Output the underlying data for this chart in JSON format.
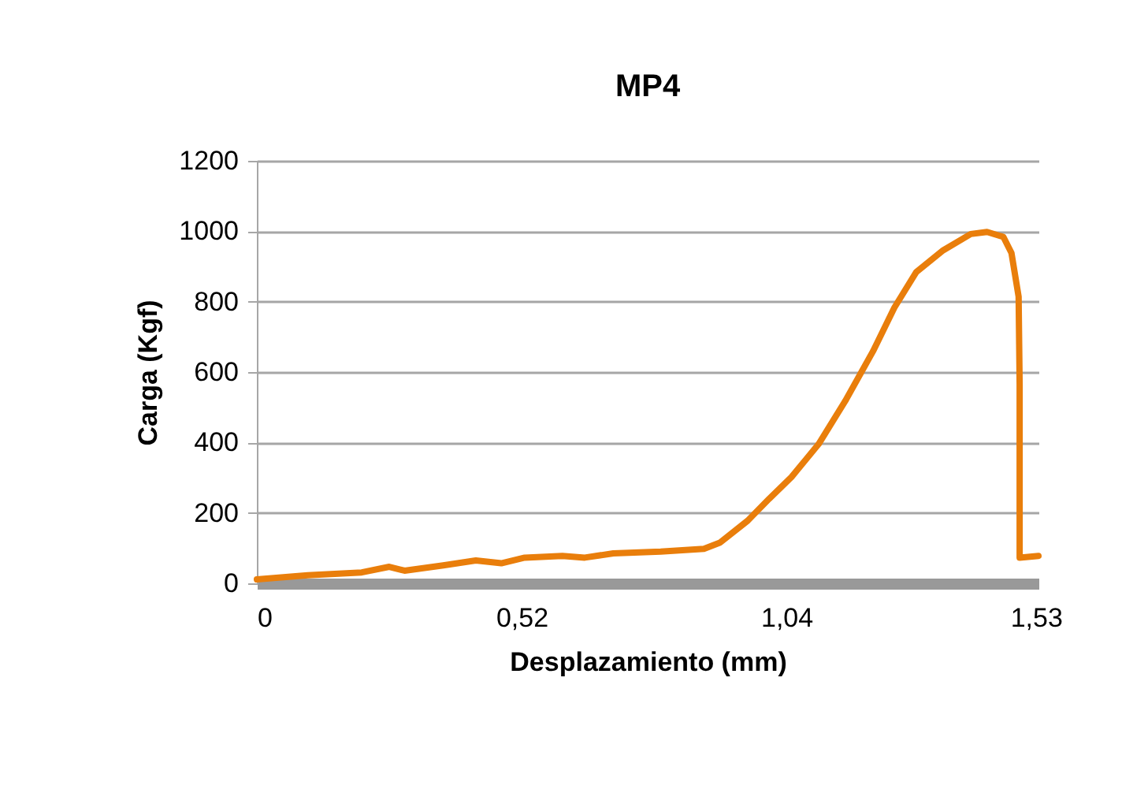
{
  "chart_data": {
    "type": "line",
    "title": "MP4",
    "xlabel": "Desplazamiento (mm)",
    "ylabel": "Carga (Kgf)",
    "x": [
      0,
      0.1,
      0.206,
      0.26,
      0.29,
      0.366,
      0.43,
      0.48,
      0.526,
      0.6,
      0.644,
      0.7,
      0.793,
      0.878,
      0.91,
      0.964,
      1.006,
      1.05,
      1.103,
      1.156,
      1.21,
      1.252,
      1.295,
      1.348,
      1.402,
      1.434,
      1.466,
      1.482,
      1.496,
      1.498,
      1.498,
      1.535
    ],
    "series": [
      {
        "color": "#e97e0b",
        "values": [
          11,
          23,
          31,
          47,
          36,
          51,
          65,
          57,
          73,
          78,
          73,
          85,
          90,
          98,
          116,
          178,
          240,
          302,
          395,
          519,
          659,
          783,
          884,
          946,
          992,
          998,
          984,
          938,
          814,
          566,
          73,
          78
        ]
      }
    ],
    "xlim": [
      0,
      1.535
    ],
    "xticks": [
      0,
      {
        "value": 0.52,
        "label": "0,52"
      },
      {
        "value": 1.04,
        "label": "1,04"
      },
      {
        "value": 1.53,
        "label": "1,53"
      }
    ],
    "ylim": [
      0,
      1200
    ],
    "yticks": [
      0,
      200,
      400,
      600,
      800,
      1000,
      1200
    ],
    "grid": "y",
    "legend": false,
    "marker": "none",
    "line_style": "solid"
  }
}
